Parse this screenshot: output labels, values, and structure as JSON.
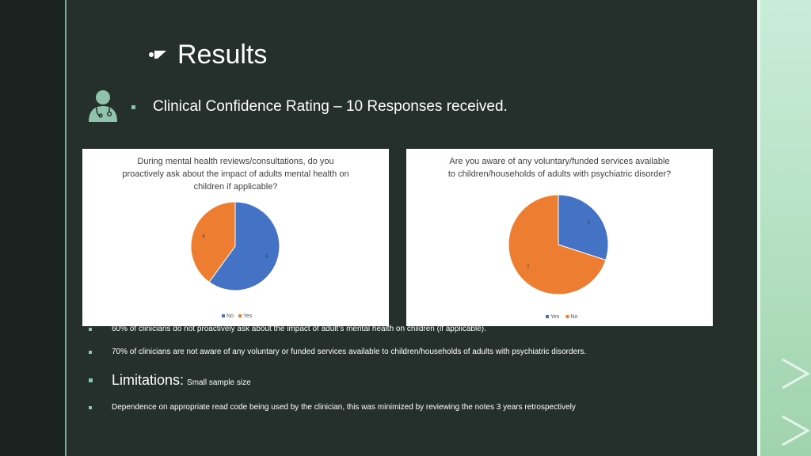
{
  "title": "Results",
  "subtitle": "Clinical Confidence Rating – 10 Responses received.",
  "chart_data": [
    {
      "type": "pie",
      "title": "During mental health reviews/consultations, do you proactively ask about the impact of adults mental health on children if applicable?",
      "title_lines": [
        "During mental health reviews/consultations, do you",
        "proactively ask about the impact of adults mental health on",
        "children if applicable?"
      ],
      "categories": [
        "No",
        "Yes"
      ],
      "values": [
        6,
        4
      ],
      "data_labels": [
        "6",
        "4"
      ],
      "colors": [
        "#4472c4",
        "#ed7d31"
      ],
      "legend": "bottom"
    },
    {
      "type": "pie",
      "title": "Are you aware of any voluntary/funded services available to children/households of adults with psychiatric disorder?",
      "title_lines": [
        "Are you aware of any voluntary/funded services available",
        "to children/households of adults with psychiatric disorder?"
      ],
      "categories": [
        "Yes",
        "No"
      ],
      "values": [
        3,
        7
      ],
      "data_labels": [
        "3",
        "7"
      ],
      "colors": [
        "#4472c4",
        "#ed7d31"
      ],
      "legend": "bottom"
    }
  ],
  "bullets": [
    "60% of clinicians do not proactively ask about the impact of adult’s mental health on children (if applicable).",
    "70% of clinicians are not aware of any voluntary or funded services available to children/households of adults with psychiatric disorders."
  ],
  "limitations": {
    "label": "Limitations:",
    "text": "Small sample size"
  },
  "final_bullet": "Dependence on appropriate read code being used by the clinician, this was minimized by reviewing the notes 3 years retrospectively",
  "icons": [
    "z-brand-icon",
    "doctor-icon"
  ],
  "colors": {
    "accent": "#8fc3ae",
    "background": "#25302c"
  }
}
